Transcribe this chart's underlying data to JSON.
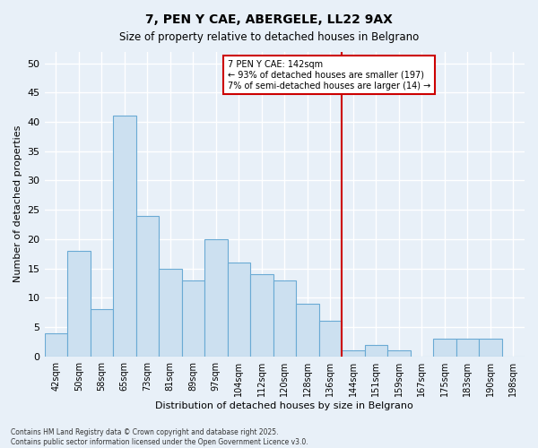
{
  "title": "7, PEN Y CAE, ABERGELE, LL22 9AX",
  "subtitle": "Size of property relative to detached houses in Belgrano",
  "xlabel": "Distribution of detached houses by size in Belgrano",
  "ylabel": "Number of detached properties",
  "bar_labels": [
    "42sqm",
    "50sqm",
    "58sqm",
    "65sqm",
    "73sqm",
    "81sqm",
    "89sqm",
    "97sqm",
    "104sqm",
    "112sqm",
    "120sqm",
    "128sqm",
    "136sqm",
    "144sqm",
    "151sqm",
    "159sqm",
    "167sqm",
    "175sqm",
    "183sqm",
    "190sqm",
    "198sqm"
  ],
  "bar_values": [
    4,
    18,
    8,
    41,
    24,
    15,
    13,
    20,
    16,
    14,
    13,
    9,
    6,
    1,
    2,
    1,
    0,
    3,
    3,
    3,
    0
  ],
  "bar_color": "#cce0f0",
  "bar_edge_color": "#6aaad4",
  "vline_color": "#cc0000",
  "annotation_text": "7 PEN Y CAE: 142sqm\n← 93% of detached houses are smaller (197)\n7% of semi-detached houses are larger (14) →",
  "annotation_box_color": "#ffffff",
  "annotation_box_edge_color": "#cc0000",
  "ylim": [
    0,
    52
  ],
  "yticks": [
    0,
    5,
    10,
    15,
    20,
    25,
    30,
    35,
    40,
    45,
    50
  ],
  "bg_color": "#e8f0f8",
  "grid_color": "#ffffff",
  "footer": "Contains HM Land Registry data © Crown copyright and database right 2025.\nContains public sector information licensed under the Open Government Licence v3.0."
}
